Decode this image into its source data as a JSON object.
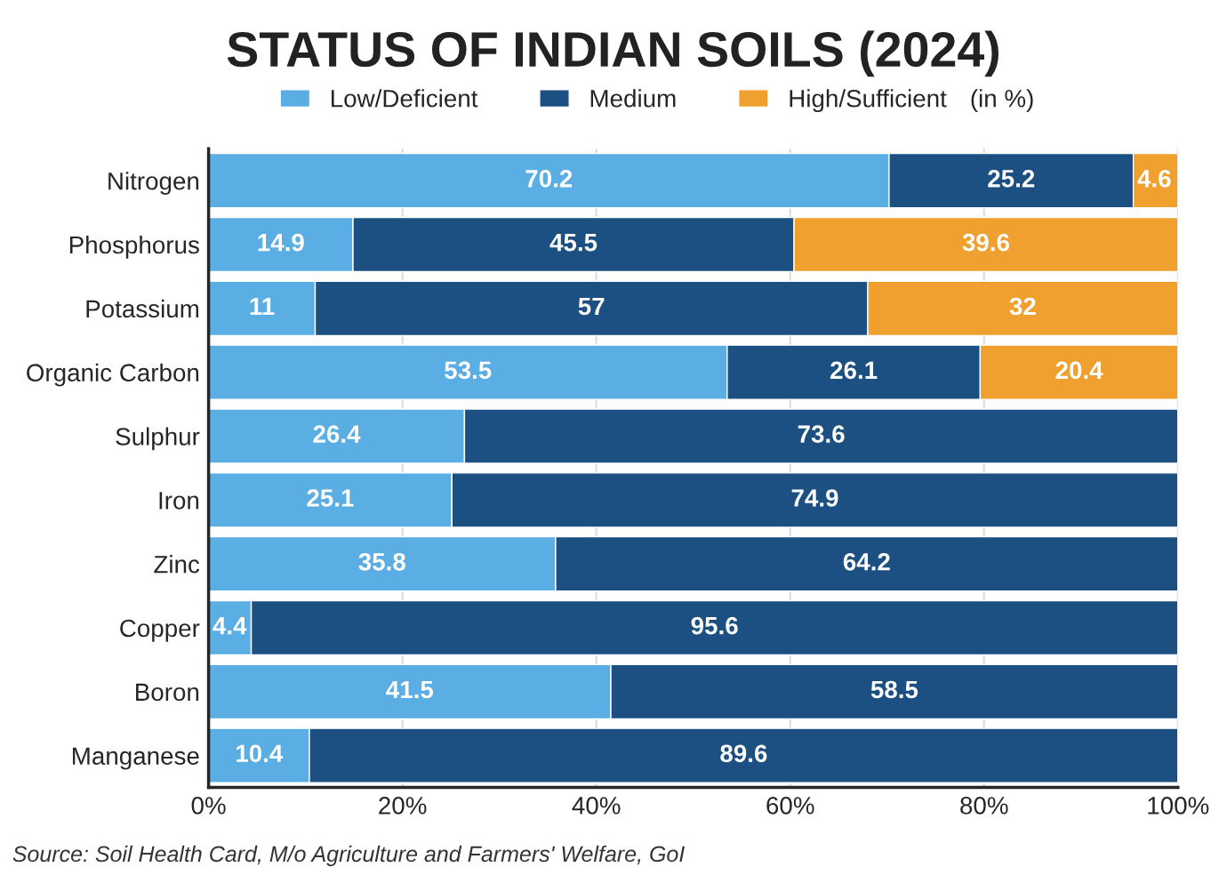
{
  "chart_data": {
    "type": "bar",
    "orientation": "horizontal",
    "stacked": true,
    "title": "STATUS OF INDIAN SOILS (2024)",
    "categories": [
      "Nitrogen",
      "Phosphorus",
      "Potassium",
      "Organic Carbon",
      "Sulphur",
      "Iron",
      "Zinc",
      "Copper",
      "Boron",
      "Manganese"
    ],
    "series": [
      {
        "name": "Low/Deficient",
        "color": "#5aaee3",
        "values": [
          70.2,
          14.9,
          11,
          53.5,
          26.4,
          25.1,
          35.8,
          4.4,
          41.5,
          10.4
        ]
      },
      {
        "name": "Medium",
        "color": "#1c4f82",
        "values": [
          25.2,
          45.5,
          57,
          26.1,
          73.6,
          74.9,
          64.2,
          95.6,
          58.5,
          89.6
        ]
      },
      {
        "name": "High/Sufficient",
        "color": "#f0a02f",
        "values": [
          4.6,
          39.6,
          32,
          20.4,
          null,
          null,
          null,
          null,
          null,
          null
        ]
      }
    ],
    "xlim": [
      0,
      100
    ],
    "xticks": [
      {
        "value": 0,
        "label": "0%"
      },
      {
        "value": 20,
        "label": "20%"
      },
      {
        "value": 40,
        "label": "40%"
      },
      {
        "value": 60,
        "label": "60%"
      },
      {
        "value": 80,
        "label": "80%"
      },
      {
        "value": 100,
        "label": "100%"
      }
    ],
    "data_labels": true,
    "legend": "top",
    "legend_title": "(in %)",
    "grid": "x",
    "annotations": [
      "Source: Soil Health Card, M/o Agriculture and Farmers' Welfare, GoI"
    ]
  }
}
